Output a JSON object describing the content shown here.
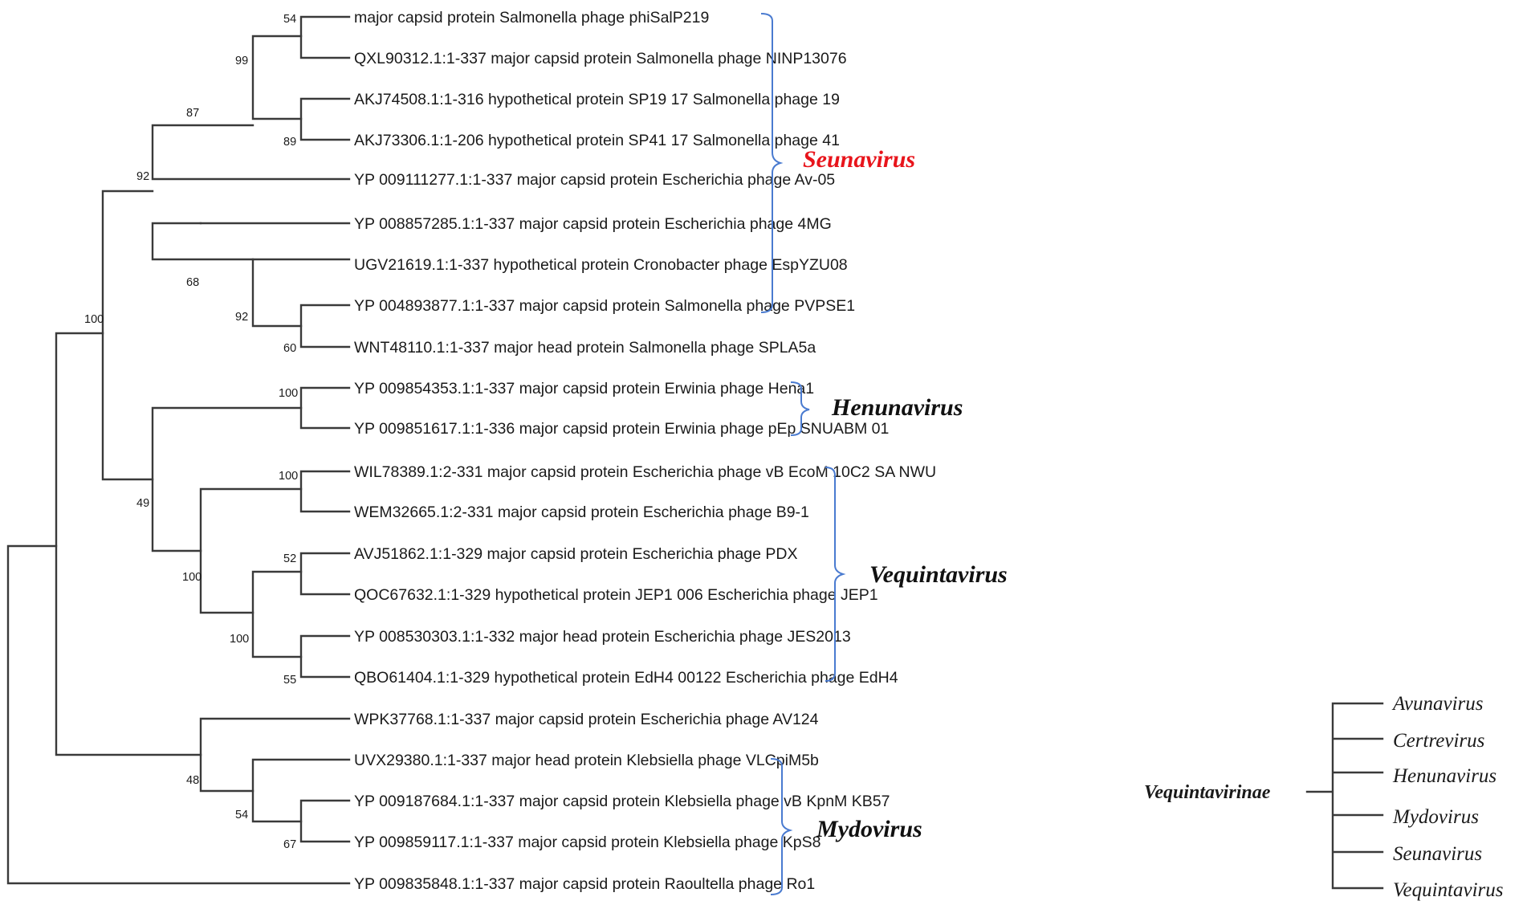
{
  "leaves": [
    "major capsid protein Salmonella phage phiSalP219",
    "QXL90312.1:1-337 major capsid protein Salmonella phage NINP13076",
    "AKJ74508.1:1-316 hypothetical protein SP19 17 Salmonella phage 19",
    "AKJ73306.1:1-206 hypothetical protein SP41 17 Salmonella phage 41",
    "YP 009111277.1:1-337 major capsid protein Escherichia phage Av-05",
    "YP 008857285.1:1-337 major capsid protein Escherichia phage 4MG",
    "UGV21619.1:1-337 hypothetical protein Cronobacter phage EspYZU08",
    "YP 004893877.1:1-337 major capsid protein Salmonella phage PVPSE1",
    "WNT48110.1:1-337 major head protein Salmonella phage SPLA5a",
    "YP 009854353.1:1-337 major capsid protein Erwinia phage Hena1",
    "YP 009851617.1:1-336 major capsid protein Erwinia phage pEp SNUABM 01",
    "WIL78389.1:2-331 major capsid protein Escherichia phage vB EcoM 10C2 SA NWU",
    "WEM32665.1:2-331 major capsid protein Escherichia phage B9-1",
    "AVJ51862.1:1-329 major capsid protein Escherichia phage PDX",
    "QOC67632.1:1-329 hypothetical protein JEP1 006 Escherichia phage JEP1",
    "YP 008530303.1:1-332 major head protein Escherichia phage JES2013",
    "QBO61404.1:1-329 hypothetical protein EdH4 00122 Escherichia phage EdH4",
    "WPK37768.1:1-337 major capsid protein Escherichia phage AV124",
    "UVX29380.1:1-337 major head protein Klebsiella phage VLCpiM5b",
    "YP 009187684.1:1-337 major capsid protein Klebsiella phage vB KpnM KB57",
    "YP 009859117.1:1-337 major capsid protein Klebsiella phage KpS8",
    "YP 009835848.1:1-337 major capsid protein Raoultella phage Ro1"
  ],
  "bootstrap": [
    "54",
    "99",
    "89",
    "87",
    "92",
    "92",
    "68",
    "60",
    "100",
    "100",
    "100",
    "49",
    "52",
    "100",
    "100",
    "55",
    "48",
    "54",
    "67"
  ],
  "clades": [
    {
      "name": "Seunavirus",
      "color": "#e8141b"
    },
    {
      "name": "Henunavirus",
      "color": "#111111"
    },
    {
      "name": "Vequintavirus",
      "color": "#111111"
    },
    {
      "name": "Mydovirus",
      "color": "#111111"
    }
  ],
  "taxonomy": {
    "root": "Vequintavirinae",
    "children": [
      "Avunavirus",
      "Certrevirus",
      "Henunavirus",
      "Mydovirus",
      "Seunavirus",
      "Vequintavirus"
    ]
  }
}
